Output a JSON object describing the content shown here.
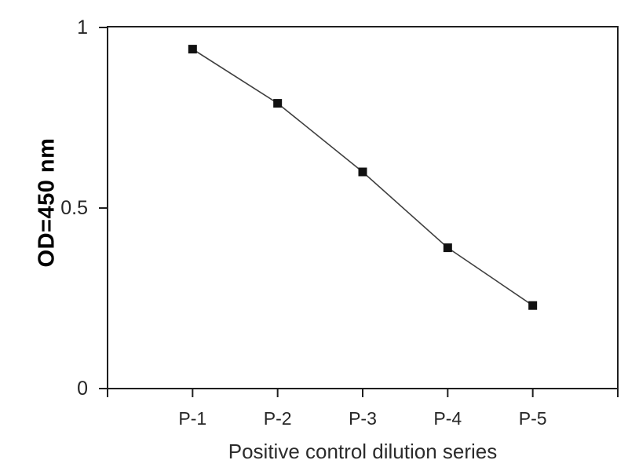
{
  "chart_data": {
    "type": "line",
    "categories": [
      "P-1",
      "P-2",
      "P-3",
      "P-4",
      "P-5"
    ],
    "values": [
      0.94,
      0.79,
      0.6,
      0.39,
      0.23
    ],
    "xlabel": "Positive control dilution series",
    "ylabel": "OD=450 nm",
    "ylim": [
      0,
      1
    ],
    "yticks": [
      0,
      0.5,
      1
    ],
    "ytick_labels": [
      "0",
      "0.5",
      "1"
    ],
    "grid": false,
    "legend": "none",
    "marker": "square",
    "colors": {
      "line": "#3f3f3f",
      "marker": "#111111",
      "axis": "#1f1f1f",
      "tick_text": "#262626",
      "background": "#ffffff"
    }
  }
}
